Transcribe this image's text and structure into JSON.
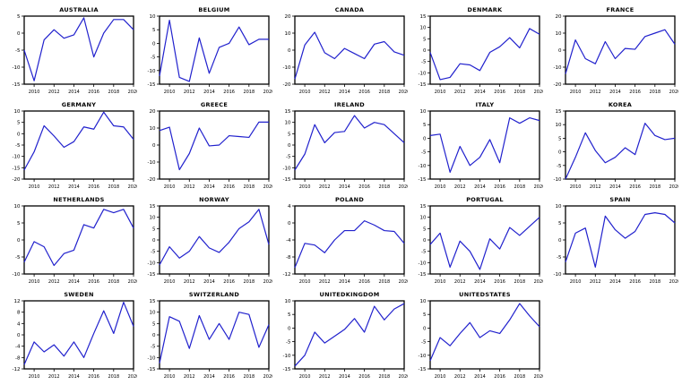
{
  "figure": {
    "description": "Grid of 19 small line charts, one per country",
    "rows": 4,
    "cols": 5
  },
  "colors": {
    "line": "#2121cd",
    "axis": "#000000",
    "background": "#ffffff"
  },
  "chart_data": [
    {
      "type": "line",
      "title": "AUSTRALIA",
      "x": [
        2009,
        2010,
        2011,
        2012,
        2013,
        2014,
        2015,
        2016,
        2017,
        2018,
        2019,
        2020
      ],
      "values": [
        -5,
        -14,
        -2,
        1,
        -1.5,
        -0.5,
        4.5,
        -7,
        0,
        4,
        4,
        1
      ],
      "ylim": [
        -15,
        5
      ],
      "yticks": [
        5,
        0,
        -5,
        -10,
        -15
      ],
      "xticks": [
        2010,
        2012,
        2014,
        2016,
        2018,
        2020
      ],
      "xlabel": "",
      "ylabel": "",
      "grid": false,
      "legend": "none"
    },
    {
      "type": "line",
      "title": "BELGIUM",
      "x": [
        2009,
        2010,
        2011,
        2012,
        2013,
        2014,
        2015,
        2016,
        2017,
        2018,
        2019,
        2020
      ],
      "values": [
        -12,
        8.5,
        -12.5,
        -14,
        2,
        -11,
        -1.5,
        0,
        6,
        -0.5,
        1.5,
        1.5
      ],
      "ylim": [
        -15,
        10
      ],
      "yticks": [
        10,
        5,
        0,
        -5,
        -10,
        -15
      ],
      "xticks": [
        2010,
        2012,
        2014,
        2016,
        2018,
        2020
      ],
      "xlabel": "",
      "ylabel": "",
      "grid": false,
      "legend": "none"
    },
    {
      "type": "line",
      "title": "CANADA",
      "x": [
        2009,
        2010,
        2011,
        2012,
        2013,
        2014,
        2015,
        2016,
        2017,
        2018,
        2019,
        2020
      ],
      "values": [
        -17,
        3,
        10.5,
        -1.5,
        -5,
        1,
        -2,
        -5,
        3.5,
        5,
        -1,
        -3
      ],
      "ylim": [
        -20,
        20
      ],
      "yticks": [
        20,
        10,
        0,
        -10,
        -20
      ],
      "xticks": [
        2010,
        2012,
        2014,
        2016,
        2018,
        2020
      ],
      "xlabel": "",
      "ylabel": "",
      "grid": false,
      "legend": "none"
    },
    {
      "type": "line",
      "title": "DENMARK",
      "x": [
        2009,
        2010,
        2011,
        2012,
        2013,
        2014,
        2015,
        2016,
        2017,
        2018,
        2019,
        2020
      ],
      "values": [
        -1,
        -13,
        -12,
        -6,
        -6.5,
        -9,
        -1,
        1.5,
        5.5,
        1,
        9.5,
        7
      ],
      "ylim": [
        -15,
        15
      ],
      "yticks": [
        15,
        10,
        5,
        0,
        -5,
        -10,
        -15
      ],
      "xticks": [
        2010,
        2012,
        2014,
        2016,
        2018,
        2020
      ],
      "xlabel": "",
      "ylabel": "",
      "grid": false,
      "legend": "none"
    },
    {
      "type": "line",
      "title": "FRANCE",
      "x": [
        2009,
        2010,
        2011,
        2012,
        2013,
        2014,
        2015,
        2016,
        2017,
        2018,
        2019,
        2020
      ],
      "values": [
        -14,
        6,
        -5,
        -8,
        5,
        -5,
        1,
        0.5,
        8,
        10,
        12,
        3.5
      ],
      "ylim": [
        -20,
        20
      ],
      "yticks": [
        20,
        10,
        0,
        -10,
        -20
      ],
      "xticks": [
        2010,
        2012,
        2014,
        2016,
        2018,
        2020
      ],
      "xlabel": "",
      "ylabel": "",
      "grid": false,
      "legend": "none"
    },
    {
      "type": "line",
      "title": "GERMANY",
      "x": [
        2009,
        2010,
        2011,
        2012,
        2013,
        2014,
        2015,
        2016,
        2017,
        2018,
        2019,
        2020
      ],
      "values": [
        -16,
        -8,
        3.5,
        -1,
        -6,
        -3.5,
        3,
        2,
        9.5,
        3.5,
        3,
        -2.5
      ],
      "ylim": [
        -20,
        10
      ],
      "yticks": [
        10,
        5,
        0,
        -5,
        -10,
        -15,
        -20
      ],
      "xticks": [
        2010,
        2012,
        2014,
        2016,
        2018,
        2020
      ],
      "xlabel": "",
      "ylabel": "",
      "grid": false,
      "legend": "none"
    },
    {
      "type": "line",
      "title": "GREECE",
      "x": [
        2009,
        2010,
        2011,
        2012,
        2013,
        2014,
        2015,
        2016,
        2017,
        2018,
        2019,
        2020
      ],
      "values": [
        8.5,
        10.5,
        -14.5,
        -5,
        10,
        -0.5,
        0,
        5.5,
        5,
        4.5,
        13.5,
        13.5
      ],
      "ylim": [
        -20,
        20
      ],
      "yticks": [
        20,
        10,
        0,
        -10,
        -20
      ],
      "xticks": [
        2010,
        2012,
        2014,
        2016,
        2018,
        2020
      ],
      "xlabel": "",
      "ylabel": "",
      "grid": false,
      "legend": "none"
    },
    {
      "type": "line",
      "title": "IRELAND",
      "x": [
        2009,
        2010,
        2011,
        2012,
        2013,
        2014,
        2015,
        2016,
        2017,
        2018,
        2019,
        2020
      ],
      "values": [
        -11,
        -4,
        9,
        1,
        5.5,
        6,
        13,
        7.5,
        10,
        9,
        5,
        1
      ],
      "ylim": [
        -15,
        15
      ],
      "yticks": [
        15,
        10,
        5,
        0,
        -5,
        -10,
        -15
      ],
      "xticks": [
        2010,
        2012,
        2014,
        2016,
        2018,
        2020
      ],
      "xlabel": "",
      "ylabel": "",
      "grid": false,
      "legend": "none"
    },
    {
      "type": "line",
      "title": "ITALY",
      "x": [
        2009,
        2010,
        2011,
        2012,
        2013,
        2014,
        2015,
        2016,
        2017,
        2018,
        2019,
        2020
      ],
      "values": [
        1,
        1.5,
        -12.5,
        -3,
        -10,
        -7,
        -0.5,
        -9,
        7.5,
        5.5,
        7.5,
        6.5
      ],
      "ylim": [
        -15,
        10
      ],
      "yticks": [
        10,
        5,
        0,
        -5,
        -10,
        -15
      ],
      "xticks": [
        2010,
        2012,
        2014,
        2016,
        2018,
        2020
      ],
      "xlabel": "",
      "ylabel": "",
      "grid": false,
      "legend": "none"
    },
    {
      "type": "line",
      "title": "KOREA",
      "x": [
        2009,
        2010,
        2011,
        2012,
        2013,
        2014,
        2015,
        2016,
        2017,
        2018,
        2019,
        2020
      ],
      "values": [
        -10,
        -2,
        7,
        0.5,
        -4,
        -2,
        1.5,
        -1,
        10.5,
        6,
        4.5,
        5
      ],
      "ylim": [
        -10,
        15
      ],
      "yticks": [
        15,
        10,
        5,
        0,
        -5,
        -10
      ],
      "xticks": [
        2010,
        2012,
        2014,
        2016,
        2018,
        2020
      ],
      "xlabel": "",
      "ylabel": "",
      "grid": false,
      "legend": "none"
    },
    {
      "type": "line",
      "title": "NETHERLANDS",
      "x": [
        2009,
        2010,
        2011,
        2012,
        2013,
        2014,
        2015,
        2016,
        2017,
        2018,
        2019,
        2020
      ],
      "values": [
        -6.5,
        -0.5,
        -2,
        -7.5,
        -4,
        -3,
        4.5,
        3.5,
        9,
        8,
        9,
        3.5
      ],
      "ylim": [
        -10,
        10
      ],
      "yticks": [
        10,
        5,
        0,
        -5,
        -10
      ],
      "xticks": [
        2010,
        2012,
        2014,
        2016,
        2018,
        2020
      ],
      "xlabel": "",
      "ylabel": "",
      "grid": false,
      "legend": "none"
    },
    {
      "type": "line",
      "title": "NORWAY",
      "x": [
        2009,
        2010,
        2011,
        2012,
        2013,
        2014,
        2015,
        2016,
        2017,
        2018,
        2019,
        2020
      ],
      "values": [
        -11,
        -3,
        -8,
        -5,
        1.5,
        -3.5,
        -5.5,
        -1,
        5,
        8,
        13.5,
        -2
      ],
      "ylim": [
        -15,
        15
      ],
      "yticks": [
        15,
        10,
        5,
        0,
        -5,
        -10,
        -15
      ],
      "xticks": [
        2010,
        2012,
        2014,
        2016,
        2018,
        2020
      ],
      "xlabel": "",
      "ylabel": "",
      "grid": false,
      "legend": "none"
    },
    {
      "type": "line",
      "title": "POLAND",
      "x": [
        2009,
        2010,
        2011,
        2012,
        2013,
        2014,
        2015,
        2016,
        2017,
        2018,
        2019,
        2020
      ],
      "values": [
        -10.5,
        -4.8,
        -5.2,
        -7,
        -4,
        -1.8,
        -1.8,
        0.5,
        -0.5,
        -1.8,
        -2,
        -4.8
      ],
      "ylim": [
        -12,
        4
      ],
      "yticks": [
        4,
        0,
        -4,
        -8,
        -12
      ],
      "xticks": [
        2010,
        2012,
        2014,
        2016,
        2018,
        2020
      ],
      "xlabel": "",
      "ylabel": "",
      "grid": false,
      "legend": "none"
    },
    {
      "type": "line",
      "title": "PORTUGAL",
      "x": [
        2009,
        2010,
        2011,
        2012,
        2013,
        2014,
        2015,
        2016,
        2017,
        2018,
        2019,
        2020
      ],
      "values": [
        -2,
        3,
        -12,
        -0.5,
        -5,
        -13,
        0.5,
        -4,
        5.5,
        2,
        6,
        10
      ],
      "ylim": [
        -15,
        15
      ],
      "yticks": [
        15,
        10,
        5,
        0,
        -5,
        -10,
        -15
      ],
      "xticks": [
        2010,
        2012,
        2014,
        2016,
        2018,
        2020
      ],
      "xlabel": "",
      "ylabel": "",
      "grid": false,
      "legend": "none"
    },
    {
      "type": "line",
      "title": "SPAIN",
      "x": [
        2009,
        2010,
        2011,
        2012,
        2013,
        2014,
        2015,
        2016,
        2017,
        2018,
        2019,
        2020
      ],
      "values": [
        -6.5,
        2,
        3.5,
        -8,
        7,
        3,
        0.5,
        2.5,
        7.5,
        8,
        7.5,
        5
      ],
      "ylim": [
        -10,
        10
      ],
      "yticks": [
        10,
        5,
        0,
        -5,
        -10
      ],
      "xticks": [
        2010,
        2012,
        2014,
        2016,
        2018,
        2020
      ],
      "xlabel": "",
      "ylabel": "",
      "grid": false,
      "legend": "none"
    },
    {
      "type": "line",
      "title": "SWEDEN",
      "x": [
        2009,
        2010,
        2011,
        2012,
        2013,
        2014,
        2015,
        2016,
        2017,
        2018,
        2019,
        2020
      ],
      "values": [
        -10.5,
        -2.5,
        -6,
        -3.5,
        -7.5,
        -2.5,
        -8,
        0.5,
        8.5,
        0.5,
        11.5,
        3
      ],
      "ylim": [
        -12,
        12
      ],
      "yticks": [
        12,
        8,
        4,
        0,
        -4,
        -8,
        -12
      ],
      "xticks": [
        2010,
        2012,
        2014,
        2016,
        2018,
        2020
      ],
      "xlabel": "",
      "ylabel": "",
      "grid": false,
      "legend": "none"
    },
    {
      "type": "line",
      "title": "SWITZERLAND",
      "x": [
        2009,
        2010,
        2011,
        2012,
        2013,
        2014,
        2015,
        2016,
        2017,
        2018,
        2019,
        2020
      ],
      "values": [
        -12.5,
        8,
        6,
        -6,
        8.5,
        -2,
        5,
        -2,
        10,
        9,
        -5.5,
        4.5
      ],
      "ylim": [
        -15,
        15
      ],
      "yticks": [
        15,
        10,
        5,
        0,
        -5,
        -10,
        -15
      ],
      "xticks": [
        2010,
        2012,
        2014,
        2016,
        2018,
        2020
      ],
      "xlabel": "",
      "ylabel": "",
      "grid": false,
      "legend": "none"
    },
    {
      "type": "line",
      "title": "UNITEDKINGDOM",
      "x": [
        2009,
        2010,
        2011,
        2012,
        2013,
        2014,
        2015,
        2016,
        2017,
        2018,
        2019,
        2020
      ],
      "values": [
        -14,
        -10,
        -1.5,
        -5.5,
        -3,
        -0.5,
        3.5,
        -1.5,
        8,
        3,
        7,
        9
      ],
      "ylim": [
        -15,
        10
      ],
      "yticks": [
        10,
        5,
        0,
        -5,
        -10,
        -15
      ],
      "xticks": [
        2010,
        2012,
        2014,
        2016,
        2018,
        2020
      ],
      "xlabel": "",
      "ylabel": "",
      "grid": false,
      "legend": "none"
    },
    {
      "type": "line",
      "title": "UNITEDSTATES",
      "x": [
        2009,
        2010,
        2011,
        2012,
        2013,
        2014,
        2015,
        2016,
        2017,
        2018,
        2019,
        2020
      ],
      "values": [
        -12,
        -3.5,
        -6.5,
        -2,
        2,
        -3.5,
        -1,
        -2,
        3,
        9,
        4.5,
        0.5
      ],
      "ylim": [
        -15,
        10
      ],
      "yticks": [
        10,
        5,
        0,
        -5,
        -10,
        -15
      ],
      "xticks": [
        2010,
        2012,
        2014,
        2016,
        2018,
        2020
      ],
      "xlabel": "",
      "ylabel": "",
      "grid": false,
      "legend": "none"
    }
  ]
}
